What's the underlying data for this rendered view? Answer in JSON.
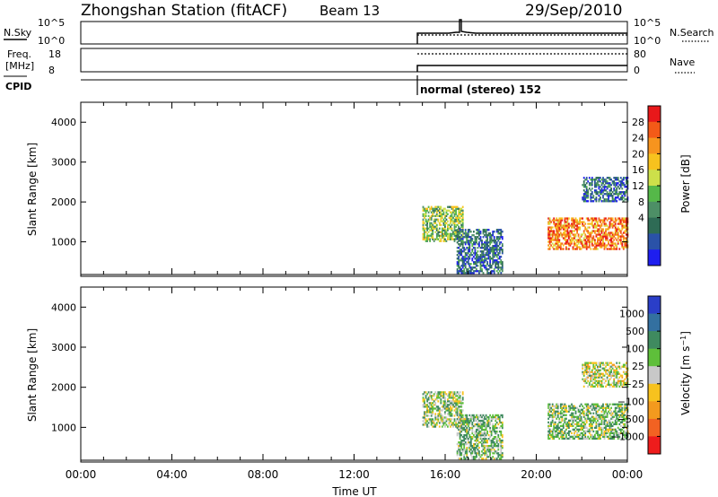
{
  "header": {
    "title": "Zhongshan Station (fitACF)",
    "beam": "Beam 13",
    "date": "29/Sep/2010"
  },
  "top_panels": {
    "nsky_label": "N.Sky",
    "nsky_ticks": [
      "10^5",
      "10^0"
    ],
    "nsearch_label": "N.Search",
    "nsearch_ticks": [
      "10^5",
      "10^0"
    ],
    "freq_label_1": "Freq.",
    "freq_label_2": "[MHz]",
    "freq_ticks": [
      "18",
      "8"
    ],
    "nave_label": "Nave",
    "nave_ticks": [
      "80",
      "0"
    ],
    "cpid_label": "CPID",
    "cpid_text": "normal (stereo) 152"
  },
  "colorbars": {
    "power_title": "Power [dB]",
    "power_labels": [
      "28",
      "24",
      "20",
      "16",
      "12",
      "8",
      "4"
    ],
    "power_colors": [
      "#e8181a",
      "#f35a18",
      "#f7941e",
      "#f7c21e",
      "#cde04a",
      "#55b849",
      "#4d8f66",
      "#2e6b55",
      "#2a52a8",
      "#1e1eef"
    ],
    "velocity_title": "Velocity [m s^-1]",
    "velocity_labels": [
      "1000",
      "500",
      "100",
      "25",
      "−25",
      "−100",
      "−500",
      "−1000"
    ],
    "velocity_colors": [
      "#2a3ec8",
      "#3370a0",
      "#3f8a5f",
      "#5ebf3a",
      "#c8c8c8",
      "#f7c21e",
      "#f39a1e",
      "#f26222",
      "#ee1c1c"
    ]
  },
  "chart_data": [
    {
      "type": "heatmap",
      "title": "Power",
      "xlabel": "",
      "ylabel": "Slant Range [km]",
      "xlim": [
        "00:00",
        "24:00"
      ],
      "ylim": [
        180,
        4500
      ],
      "yticks": [
        "1000",
        "2000",
        "3000",
        "4000"
      ],
      "colorbar": "Power [dB]",
      "colorbar_range": [
        0,
        30
      ],
      "grid": false,
      "data_extent_time": [
        "15:00",
        "24:00"
      ],
      "regions": [
        {
          "t": [
            "15:00",
            "16:45"
          ],
          "range_km": [
            1000,
            1900
          ],
          "dB_typical": 14
        },
        {
          "t": [
            "16:30",
            "18:30"
          ],
          "range_km": [
            200,
            1300
          ],
          "dB_typical": 6
        },
        {
          "t": [
            "20:30",
            "24:00"
          ],
          "range_km": [
            800,
            1600
          ],
          "dB_typical": 24
        },
        {
          "t": [
            "22:00",
            "24:00"
          ],
          "range_km": [
            2000,
            2600
          ],
          "dB_typical": 6
        }
      ]
    },
    {
      "type": "heatmap",
      "title": "Velocity",
      "xlabel": "Time UT",
      "ylabel": "Slant Range [km]",
      "xlim": [
        "00:00",
        "24:00"
      ],
      "ylim": [
        180,
        4500
      ],
      "yticks": [
        "1000",
        "2000",
        "3000",
        "4000"
      ],
      "xticks": [
        "00:00",
        "04:00",
        "08:00",
        "12:00",
        "16:00",
        "20:00",
        "00:00"
      ],
      "colorbar": "Velocity [m s^-1]",
      "colorbar_range": [
        -1000,
        1000
      ],
      "grid": false,
      "data_extent_time": [
        "15:00",
        "24:00"
      ],
      "regions": [
        {
          "t": [
            "15:00",
            "16:45"
          ],
          "range_km": [
            1000,
            1900
          ],
          "vel_typical": 50
        },
        {
          "t": [
            "16:30",
            "18:30"
          ],
          "range_km": [
            200,
            1300
          ],
          "vel_typical": 80
        },
        {
          "t": [
            "20:30",
            "24:00"
          ],
          "range_km": [
            700,
            1600
          ],
          "vel_typical": 60
        },
        {
          "t": [
            "22:00",
            "24:00"
          ],
          "range_km": [
            2000,
            2600
          ],
          "vel_typical": 0
        }
      ]
    }
  ]
}
